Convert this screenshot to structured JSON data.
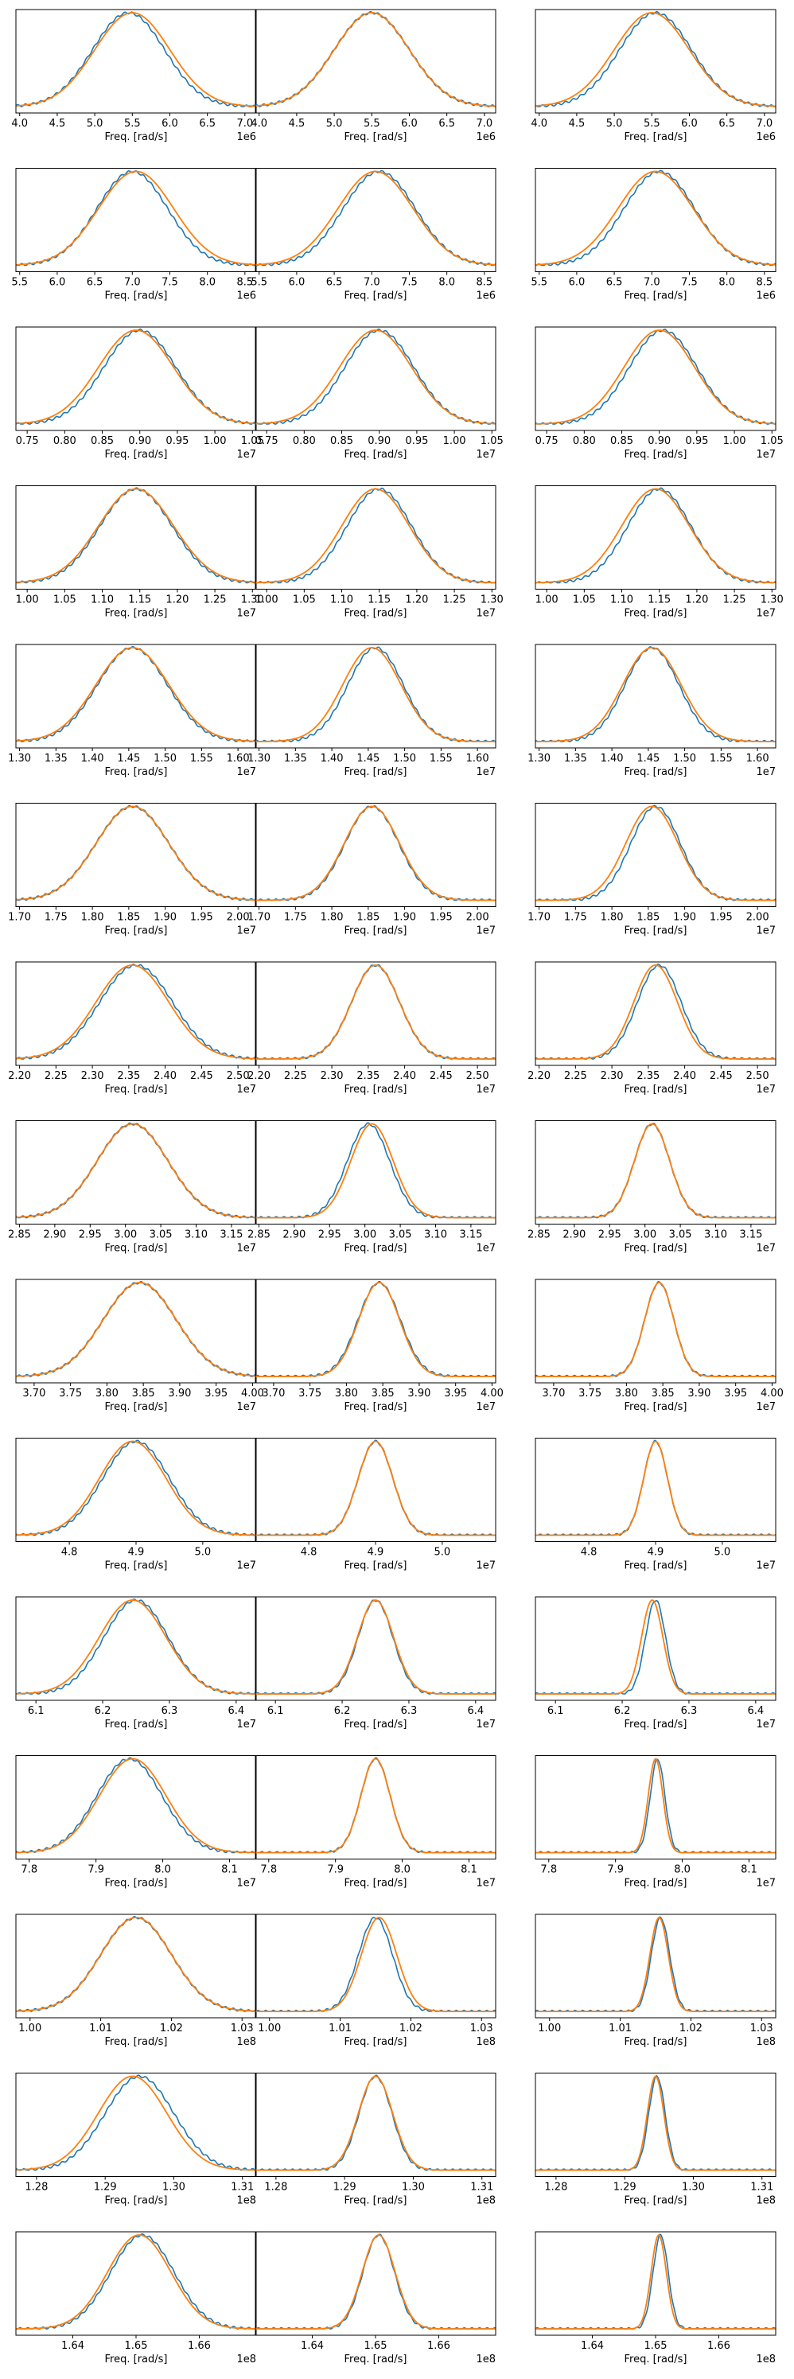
{
  "figure": {
    "xlabel": "Freq. [rad/s]",
    "colors": {
      "blue": "#1f77b4",
      "orange": "#ff7f0e",
      "axes": "#000000"
    }
  },
  "chart_data": [
    {
      "type": "line",
      "row": 1,
      "col": 1,
      "xlabel": "Freq. [rad/s]",
      "multiplier": "1e6",
      "xlim": [
        3.95,
        7.15
      ],
      "ticks": [
        "4.0",
        "4.5",
        "5.0",
        "5.5",
        "6.0",
        "6.5",
        "7.0"
      ],
      "grid": false,
      "peak": 5.5,
      "width": 0.5,
      "blue_peak": 5.45,
      "blue_width": 0.48
    },
    {
      "type": "line",
      "row": 1,
      "col": 2,
      "xlabel": "Freq. [rad/s]",
      "multiplier": "1e6",
      "xlim": [
        3.95,
        7.15
      ],
      "ticks": [
        "4.0",
        "4.5",
        "5.0",
        "5.5",
        "6.0",
        "6.5",
        "7.0"
      ],
      "grid": false,
      "peak": 5.5,
      "width": 0.5,
      "blue_peak": 5.5,
      "blue_width": 0.5
    },
    {
      "type": "line",
      "row": 1,
      "col": 3,
      "xlabel": "Freq. [rad/s]",
      "multiplier": "1e6",
      "xlim": [
        3.95,
        7.15
      ],
      "ticks": [
        "4.0",
        "4.5",
        "5.0",
        "5.5",
        "6.0",
        "6.5",
        "7.0"
      ],
      "grid": false,
      "peak": 5.5,
      "width": 0.5,
      "blue_peak": 5.55,
      "blue_width": 0.48
    },
    {
      "type": "line",
      "row": 2,
      "col": 1,
      "xlabel": "Freq. [rad/s]",
      "multiplier": "1e6",
      "xlim": [
        5.45,
        8.65
      ],
      "ticks": [
        "5.5",
        "6.0",
        "6.5",
        "7.0",
        "7.5",
        "8.0",
        "8.5"
      ],
      "grid": false,
      "peak": 7.05,
      "width": 0.5,
      "blue_peak": 7.0,
      "blue_width": 0.47
    },
    {
      "type": "line",
      "row": 2,
      "col": 2,
      "xlabel": "Freq. [rad/s]",
      "multiplier": "1e6",
      "xlim": [
        5.45,
        8.65
      ],
      "ticks": [
        "5.5",
        "6.0",
        "6.5",
        "7.0",
        "7.5",
        "8.0",
        "8.5"
      ],
      "grid": false,
      "peak": 7.05,
      "width": 0.5,
      "blue_peak": 7.1,
      "blue_width": 0.48
    },
    {
      "type": "line",
      "row": 2,
      "col": 3,
      "xlabel": "Freq. [rad/s]",
      "multiplier": "1e6",
      "xlim": [
        5.45,
        8.65
      ],
      "ticks": [
        "5.5",
        "6.0",
        "6.5",
        "7.0",
        "7.5",
        "8.0",
        "8.5"
      ],
      "grid": false,
      "peak": 7.05,
      "width": 0.5,
      "blue_peak": 7.1,
      "blue_width": 0.47
    },
    {
      "type": "line",
      "row": 3,
      "col": 1,
      "xlabel": "Freq. [rad/s]",
      "multiplier": "1e7",
      "xlim": [
        0.735,
        1.055
      ],
      "ticks": [
        "0.75",
        "0.80",
        "0.85",
        "0.90",
        "0.95",
        "1.00",
        "1.05"
      ],
      "grid": false,
      "peak": 0.895,
      "width": 0.05,
      "blue_peak": 0.9,
      "blue_width": 0.048
    },
    {
      "type": "line",
      "row": 3,
      "col": 2,
      "xlabel": "Freq. [rad/s]",
      "multiplier": "1e7",
      "xlim": [
        0.735,
        1.055
      ],
      "ticks": [
        "0.75",
        "0.80",
        "0.85",
        "0.90",
        "0.95",
        "1.00",
        "1.05"
      ],
      "grid": false,
      "peak": 0.895,
      "width": 0.048,
      "blue_peak": 0.9,
      "blue_width": 0.046
    },
    {
      "type": "line",
      "row": 3,
      "col": 3,
      "xlabel": "Freq. [rad/s]",
      "multiplier": "1e7",
      "xlim": [
        0.735,
        1.055
      ],
      "ticks": [
        "0.75",
        "0.80",
        "0.85",
        "0.90",
        "0.95",
        "1.00",
        "1.05"
      ],
      "grid": false,
      "peak": 0.9,
      "width": 0.047,
      "blue_peak": 0.905,
      "blue_width": 0.045
    },
    {
      "type": "line",
      "row": 4,
      "col": 1,
      "xlabel": "Freq. [rad/s]",
      "multiplier": "1e7",
      "xlim": [
        0.985,
        1.305
      ],
      "ticks": [
        "1.00",
        "1.05",
        "1.10",
        "1.15",
        "1.20",
        "1.25",
        "1.30"
      ],
      "grid": false,
      "peak": 1.145,
      "width": 0.05,
      "blue_peak": 1.145,
      "blue_width": 0.048
    },
    {
      "type": "line",
      "row": 4,
      "col": 2,
      "xlabel": "Freq. [rad/s]",
      "multiplier": "1e7",
      "xlim": [
        0.985,
        1.305
      ],
      "ticks": [
        "1.00",
        "1.05",
        "1.10",
        "1.15",
        "1.20",
        "1.25",
        "1.30"
      ],
      "grid": false,
      "peak": 1.145,
      "width": 0.045,
      "blue_peak": 1.15,
      "blue_width": 0.043
    },
    {
      "type": "line",
      "row": 4,
      "col": 3,
      "xlabel": "Freq. [rad/s]",
      "multiplier": "1e7",
      "xlim": [
        0.985,
        1.305
      ],
      "ticks": [
        "1.00",
        "1.05",
        "1.10",
        "1.15",
        "1.20",
        "1.25",
        "1.30"
      ],
      "grid": false,
      "peak": 1.145,
      "width": 0.045,
      "blue_peak": 1.15,
      "blue_width": 0.042
    },
    {
      "type": "line",
      "row": 5,
      "col": 1,
      "xlabel": "Freq. [rad/s]",
      "multiplier": "1e7",
      "xlim": [
        1.295,
        1.625
      ],
      "ticks": [
        "1.30",
        "1.35",
        "1.40",
        "1.45",
        "1.50",
        "1.55",
        "1.60"
      ],
      "grid": false,
      "peak": 1.455,
      "width": 0.05,
      "blue_peak": 1.455,
      "blue_width": 0.048
    },
    {
      "type": "line",
      "row": 5,
      "col": 2,
      "xlabel": "Freq. [rad/s]",
      "multiplier": "1e7",
      "xlim": [
        1.295,
        1.625
      ],
      "ticks": [
        "1.30",
        "1.35",
        "1.40",
        "1.45",
        "1.50",
        "1.55",
        "1.60"
      ],
      "grid": false,
      "peak": 1.455,
      "width": 0.04,
      "blue_peak": 1.46,
      "blue_width": 0.038
    },
    {
      "type": "line",
      "row": 5,
      "col": 3,
      "xlabel": "Freq. [rad/s]",
      "multiplier": "1e7",
      "xlim": [
        1.295,
        1.625
      ],
      "ticks": [
        "1.30",
        "1.35",
        "1.40",
        "1.45",
        "1.50",
        "1.55",
        "1.60"
      ],
      "grid": false,
      "peak": 1.455,
      "width": 0.04,
      "blue_peak": 1.455,
      "blue_width": 0.037
    },
    {
      "type": "line",
      "row": 6,
      "col": 1,
      "xlabel": "Freq. [rad/s]",
      "multiplier": "1e7",
      "xlim": [
        1.695,
        2.025
      ],
      "ticks": [
        "1.70",
        "1.75",
        "1.80",
        "1.85",
        "1.90",
        "1.95",
        "2.00"
      ],
      "grid": false,
      "peak": 1.855,
      "width": 0.05,
      "blue_peak": 1.855,
      "blue_width": 0.05
    },
    {
      "type": "line",
      "row": 6,
      "col": 2,
      "xlabel": "Freq. [rad/s]",
      "multiplier": "1e7",
      "xlim": [
        1.695,
        2.025
      ],
      "ticks": [
        "1.70",
        "1.75",
        "1.80",
        "1.85",
        "1.90",
        "1.95",
        "2.00"
      ],
      "grid": false,
      "peak": 1.855,
      "width": 0.038,
      "blue_peak": 1.855,
      "blue_width": 0.037
    },
    {
      "type": "line",
      "row": 6,
      "col": 3,
      "xlabel": "Freq. [rad/s]",
      "multiplier": "1e7",
      "xlim": [
        1.695,
        2.025
      ],
      "ticks": [
        "1.70",
        "1.75",
        "1.80",
        "1.85",
        "1.90",
        "1.95",
        "2.00"
      ],
      "grid": false,
      "peak": 1.855,
      "width": 0.036,
      "blue_peak": 1.86,
      "blue_width": 0.034
    },
    {
      "type": "line",
      "row": 7,
      "col": 1,
      "xlabel": "Freq. [rad/s]",
      "multiplier": "1e7",
      "xlim": [
        2.195,
        2.525
      ],
      "ticks": [
        "2.20",
        "2.25",
        "2.30",
        "2.35",
        "2.40",
        "2.45",
        "2.50"
      ],
      "grid": false,
      "peak": 2.355,
      "width": 0.05,
      "blue_peak": 2.36,
      "blue_width": 0.05
    },
    {
      "type": "line",
      "row": 7,
      "col": 2,
      "xlabel": "Freq. [rad/s]",
      "multiplier": "1e7",
      "xlim": [
        2.195,
        2.525
      ],
      "ticks": [
        "2.20",
        "2.25",
        "2.30",
        "2.35",
        "2.40",
        "2.45",
        "2.50"
      ],
      "grid": false,
      "peak": 2.36,
      "width": 0.033,
      "blue_peak": 2.36,
      "blue_width": 0.033
    },
    {
      "type": "line",
      "row": 7,
      "col": 3,
      "xlabel": "Freq. [rad/s]",
      "multiplier": "1e7",
      "xlim": [
        2.195,
        2.525
      ],
      "ticks": [
        "2.20",
        "2.25",
        "2.30",
        "2.35",
        "2.40",
        "2.45",
        "2.50"
      ],
      "grid": false,
      "peak": 2.36,
      "width": 0.03,
      "blue_peak": 2.365,
      "blue_width": 0.03
    },
    {
      "type": "line",
      "row": 8,
      "col": 1,
      "xlabel": "Freq. [rad/s]",
      "multiplier": "1e7",
      "xlim": [
        2.845,
        3.185
      ],
      "ticks": [
        "2.85",
        "2.90",
        "2.95",
        "3.00",
        "3.05",
        "3.10",
        "3.15"
      ],
      "grid": false,
      "peak": 3.01,
      "width": 0.05,
      "blue_peak": 3.01,
      "blue_width": 0.05
    },
    {
      "type": "line",
      "row": 8,
      "col": 2,
      "xlabel": "Freq. [rad/s]",
      "multiplier": "1e7",
      "xlim": [
        2.845,
        3.185
      ],
      "ticks": [
        "2.85",
        "2.90",
        "2.95",
        "3.00",
        "3.05",
        "3.10",
        "3.15"
      ],
      "grid": false,
      "peak": 3.01,
      "width": 0.03,
      "blue_peak": 3.005,
      "blue_width": 0.03
    },
    {
      "type": "line",
      "row": 8,
      "col": 3,
      "xlabel": "Freq. [rad/s]",
      "multiplier": "1e7",
      "xlim": [
        2.845,
        3.185
      ],
      "ticks": [
        "2.85",
        "2.90",
        "2.95",
        "3.00",
        "3.05",
        "3.10",
        "3.15"
      ],
      "grid": false,
      "peak": 3.01,
      "width": 0.025,
      "blue_peak": 3.01,
      "blue_width": 0.025
    },
    {
      "type": "line",
      "row": 9,
      "col": 1,
      "xlabel": "Freq. [rad/s]",
      "multiplier": "1e7",
      "xlim": [
        3.675,
        4.005
      ],
      "ticks": [
        "3.70",
        "3.75",
        "3.80",
        "3.85",
        "3.90",
        "3.95",
        "4.00"
      ],
      "grid": false,
      "peak": 3.845,
      "width": 0.05,
      "blue_peak": 3.845,
      "blue_width": 0.05
    },
    {
      "type": "line",
      "row": 9,
      "col": 2,
      "xlabel": "Freq. [rad/s]",
      "multiplier": "1e7",
      "xlim": [
        3.675,
        4.005
      ],
      "ticks": [
        "3.70",
        "3.75",
        "3.80",
        "3.85",
        "3.90",
        "3.95",
        "4.00"
      ],
      "grid": false,
      "peak": 3.845,
      "width": 0.028,
      "blue_peak": 3.845,
      "blue_width": 0.029
    },
    {
      "type": "line",
      "row": 9,
      "col": 3,
      "xlabel": "Freq. [rad/s]",
      "multiplier": "1e7",
      "xlim": [
        3.675,
        4.005
      ],
      "ticks": [
        "3.70",
        "3.75",
        "3.80",
        "3.85",
        "3.90",
        "3.95",
        "4.00"
      ],
      "grid": false,
      "peak": 3.845,
      "width": 0.02,
      "blue_peak": 3.845,
      "blue_width": 0.02
    },
    {
      "type": "line",
      "row": 10,
      "col": 1,
      "xlabel": "Freq. [rad/s]",
      "multiplier": "1e7",
      "xlim": [
        4.72,
        5.08
      ],
      "ticks": [
        "4.8",
        "4.9",
        "5.0"
      ],
      "grid": false,
      "peak": 4.895,
      "width": 0.05,
      "blue_peak": 4.9,
      "blue_width": 0.05
    },
    {
      "type": "line",
      "row": 10,
      "col": 2,
      "xlabel": "Freq. [rad/s]",
      "multiplier": "1e7",
      "xlim": [
        4.72,
        5.08
      ],
      "ticks": [
        "4.8",
        "4.9",
        "5.0"
      ],
      "grid": false,
      "peak": 4.9,
      "width": 0.026,
      "blue_peak": 4.9,
      "blue_width": 0.026
    },
    {
      "type": "line",
      "row": 10,
      "col": 3,
      "xlabel": "Freq. [rad/s]",
      "multiplier": "1e7",
      "xlim": [
        4.72,
        5.08
      ],
      "ticks": [
        "4.8",
        "4.9",
        "5.0"
      ],
      "grid": false,
      "peak": 4.9,
      "width": 0.018,
      "blue_peak": 4.9,
      "blue_width": 0.018
    },
    {
      "type": "line",
      "row": 11,
      "col": 1,
      "xlabel": "Freq. [rad/s]",
      "multiplier": "1e7",
      "xlim": [
        6.07,
        6.43
      ],
      "ticks": [
        "6.1",
        "6.2",
        "6.3",
        "6.4"
      ],
      "grid": false,
      "peak": 6.245,
      "width": 0.05,
      "blue_peak": 6.25,
      "blue_width": 0.048
    },
    {
      "type": "line",
      "row": 11,
      "col": 2,
      "xlabel": "Freq. [rad/s]",
      "multiplier": "1e7",
      "xlim": [
        6.07,
        6.43
      ],
      "ticks": [
        "6.1",
        "6.2",
        "6.3",
        "6.4"
      ],
      "grid": false,
      "peak": 6.25,
      "width": 0.027,
      "blue_peak": 6.25,
      "blue_width": 0.026
    },
    {
      "type": "line",
      "row": 11,
      "col": 3,
      "xlabel": "Freq. [rad/s]",
      "multiplier": "1e7",
      "xlim": [
        6.07,
        6.43
      ],
      "ticks": [
        "6.1",
        "6.2",
        "6.3",
        "6.4"
      ],
      "grid": false,
      "peak": 6.245,
      "width": 0.016,
      "blue_peak": 6.25,
      "blue_width": 0.015
    },
    {
      "type": "line",
      "row": 12,
      "col": 1,
      "xlabel": "Freq. [rad/s]",
      "multiplier": "1e7",
      "xlim": [
        7.78,
        8.14
      ],
      "ticks": [
        "7.8",
        "7.9",
        "8.0",
        "8.1"
      ],
      "grid": false,
      "peak": 7.955,
      "width": 0.05,
      "blue_peak": 7.95,
      "blue_width": 0.049
    },
    {
      "type": "line",
      "row": 12,
      "col": 2,
      "xlabel": "Freq. [rad/s]",
      "multiplier": "1e7",
      "xlim": [
        7.78,
        8.14
      ],
      "ticks": [
        "7.8",
        "7.9",
        "8.0",
        "8.1"
      ],
      "grid": false,
      "peak": 7.96,
      "width": 0.022,
      "blue_peak": 7.96,
      "blue_width": 0.022
    },
    {
      "type": "line",
      "row": 12,
      "col": 3,
      "xlabel": "Freq. [rad/s]",
      "multiplier": "1e7",
      "xlim": [
        7.78,
        8.14
      ],
      "ticks": [
        "7.8",
        "7.9",
        "8.0",
        "8.1"
      ],
      "grid": false,
      "peak": 7.96,
      "width": 0.011,
      "blue_peak": 7.963,
      "blue_width": 0.011
    },
    {
      "type": "line",
      "row": 13,
      "col": 1,
      "xlabel": "Freq. [rad/s]",
      "multiplier": "1e8",
      "xlim": [
        0.998,
        1.032
      ],
      "ticks": [
        "1.00",
        "1.01",
        "1.02",
        "1.03"
      ],
      "grid": false,
      "peak": 1.015,
      "width": 0.005,
      "blue_peak": 1.015,
      "blue_width": 0.005
    },
    {
      "type": "line",
      "row": 13,
      "col": 2,
      "xlabel": "Freq. [rad/s]",
      "multiplier": "1e8",
      "xlim": [
        0.998,
        1.032
      ],
      "ticks": [
        "1.00",
        "1.01",
        "1.02",
        "1.03"
      ],
      "grid": false,
      "peak": 1.0155,
      "width": 0.0025,
      "blue_peak": 1.015,
      "blue_width": 0.0024
    },
    {
      "type": "line",
      "row": 13,
      "col": 3,
      "xlabel": "Freq. [rad/s]",
      "multiplier": "1e8",
      "xlim": [
        0.998,
        1.032
      ],
      "ticks": [
        "1.00",
        "1.01",
        "1.02",
        "1.03"
      ],
      "grid": false,
      "peak": 1.0155,
      "width": 0.0013,
      "blue_peak": 1.0157,
      "blue_width": 0.0013
    },
    {
      "type": "line",
      "row": 14,
      "col": 1,
      "xlabel": "Freq. [rad/s]",
      "multiplier": "1e8",
      "xlim": [
        1.277,
        1.312
      ],
      "ticks": [
        "1.28",
        "1.29",
        "1.30",
        "1.31"
      ],
      "grid": false,
      "peak": 1.294,
      "width": 0.005,
      "blue_peak": 1.295,
      "blue_width": 0.005
    },
    {
      "type": "line",
      "row": 14,
      "col": 2,
      "xlabel": "Freq. [rad/s]",
      "multiplier": "1e8",
      "xlim": [
        1.277,
        1.312
      ],
      "ticks": [
        "1.28",
        "1.29",
        "1.30",
        "1.31"
      ],
      "grid": false,
      "peak": 1.2945,
      "width": 0.0025,
      "blue_peak": 1.2945,
      "blue_width": 0.0024
    },
    {
      "type": "line",
      "row": 14,
      "col": 3,
      "xlabel": "Freq. [rad/s]",
      "multiplier": "1e8",
      "xlim": [
        1.277,
        1.312
      ],
      "ticks": [
        "1.28",
        "1.29",
        "1.30",
        "1.31"
      ],
      "grid": false,
      "peak": 1.2945,
      "width": 0.0012,
      "blue_peak": 1.2947,
      "blue_width": 0.0012
    },
    {
      "type": "line",
      "row": 15,
      "col": 1,
      "xlabel": "Freq. [rad/s]",
      "multiplier": "1e8",
      "xlim": [
        1.631,
        1.669
      ],
      "ticks": [
        "1.64",
        "1.65",
        "1.66"
      ],
      "grid": false,
      "peak": 1.6505,
      "width": 0.005,
      "blue_peak": 1.651,
      "blue_width": 0.005
    },
    {
      "type": "line",
      "row": 15,
      "col": 2,
      "xlabel": "Freq. [rad/s]",
      "multiplier": "1e8",
      "xlim": [
        1.631,
        1.669
      ],
      "ticks": [
        "1.64",
        "1.65",
        "1.66"
      ],
      "grid": false,
      "peak": 1.6505,
      "width": 0.0026,
      "blue_peak": 1.6505,
      "blue_width": 0.0025
    },
    {
      "type": "line",
      "row": 15,
      "col": 3,
      "xlabel": "Freq. [rad/s]",
      "multiplier": "1e8",
      "xlim": [
        1.631,
        1.669
      ],
      "ticks": [
        "1.64",
        "1.65",
        "1.66"
      ],
      "grid": false,
      "peak": 1.6505,
      "width": 0.0012,
      "blue_peak": 1.6508,
      "blue_width": 0.0012
    }
  ]
}
